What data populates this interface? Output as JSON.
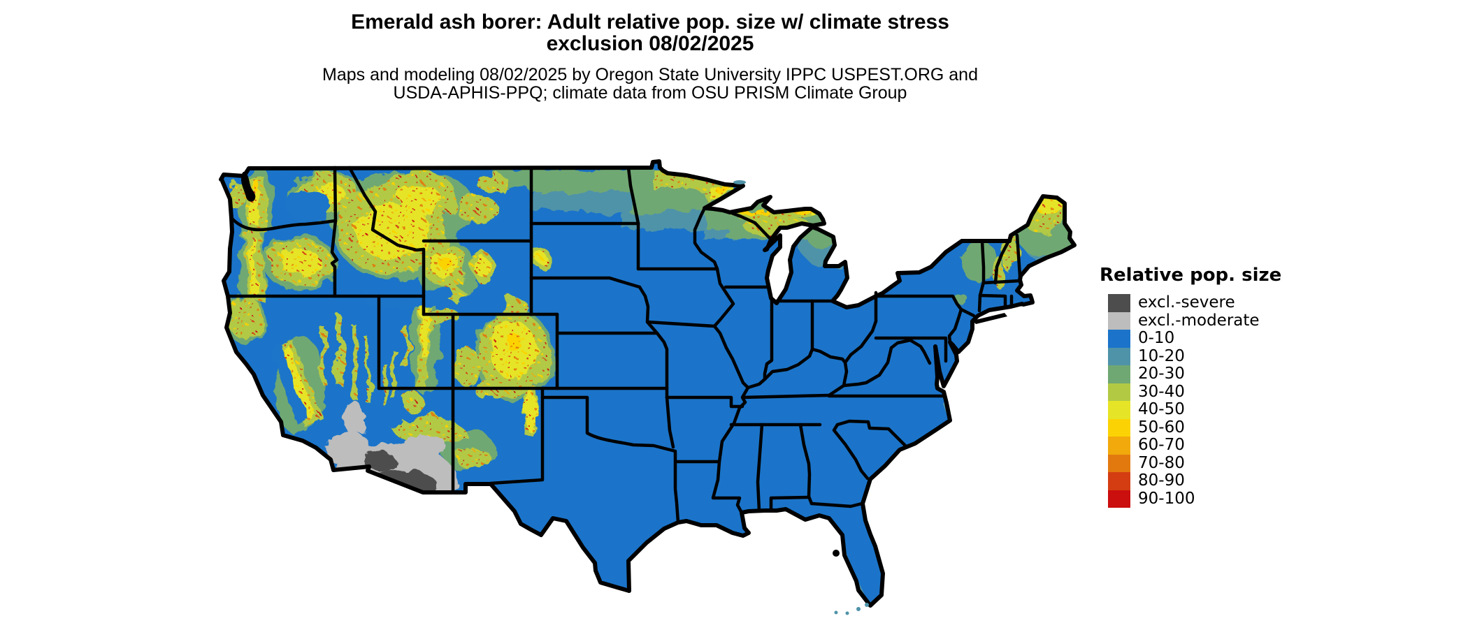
{
  "header": {
    "title_lines": [
      "Emerald ash borer: Adult relative pop. size w/ climate stress",
      "exclusion 08/02/2025"
    ],
    "subtitle_lines": [
      "Maps and modeling 08/02/2025 by Oregon State University IPPC USPEST.ORG and",
      "USDA-APHIS-PPQ; climate data from OSU PRISM Climate Group"
    ]
  },
  "legend": {
    "title": "Relative pop. size",
    "entries": [
      {
        "label": "excl.-severe",
        "color": "#4d4d4d"
      },
      {
        "label": "excl.-moderate",
        "color": "#bdbdbd"
      },
      {
        "label": "0-10",
        "color": "#1b74c9"
      },
      {
        "label": "10-20",
        "color": "#4f93a9"
      },
      {
        "label": "20-30",
        "color": "#6fa873"
      },
      {
        "label": "30-40",
        "color": "#b2c944"
      },
      {
        "label": "40-50",
        "color": "#e6e426"
      },
      {
        "label": "50-60",
        "color": "#fbd304"
      },
      {
        "label": "60-70",
        "color": "#f2a90c"
      },
      {
        "label": "70-80",
        "color": "#e2790f"
      },
      {
        "label": "80-90",
        "color": "#d43d12"
      },
      {
        "label": "90-100",
        "color": "#cb0e0e"
      }
    ]
  },
  "palette": {
    "excl-severe": "#4d4d4d",
    "excl-moderate": "#bdbdbd",
    "c0-10": "#1b74c9",
    "c10-20": "#4f93a9",
    "c20-30": "#6fa873",
    "c30-40": "#b2c944",
    "c40-50": "#e6e426",
    "c50-60": "#fbd304",
    "c60-70": "#f2a90c",
    "c70-80": "#e2790f",
    "c80-90": "#d43d12",
    "c90-100": "#cb0e0e",
    "state-border": "#000000",
    "water": "#ffffff"
  }
}
